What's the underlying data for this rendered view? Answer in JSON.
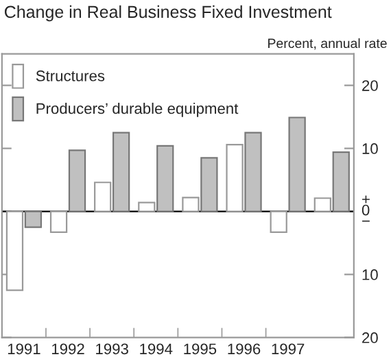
{
  "chart_data": {
    "type": "bar",
    "title": "Change in Real Business Fixed Investment",
    "ylabel": "Percent, annual rate",
    "categories": [
      "1991",
      "1992",
      "1993",
      "1994",
      "1995",
      "1996",
      "1997",
      null
    ],
    "series": [
      {
        "name": "Structures",
        "color": "#ffffff",
        "values": [
          -12.5,
          -3.3,
          4.6,
          1.4,
          2.2,
          10.6,
          -3.3,
          2.1
        ]
      },
      {
        "name": "Producers’ durable equipment",
        "color": "#c0c0c0",
        "values": [
          -2.5,
          9.7,
          12.5,
          10.4,
          8.5,
          12.5,
          14.9,
          9.4
        ]
      }
    ],
    "ylim": [
      -20,
      25
    ],
    "yticks": [
      {
        "value": -20,
        "label": "20"
      },
      {
        "value": -10,
        "label": "10"
      },
      {
        "value": 0,
        "label": "+\n0\n−"
      },
      10,
      20
    ],
    "ref_lines": [
      {
        "axis": "y",
        "value": 0,
        "color": "#000000"
      }
    ],
    "legend": "top left",
    "grid": false
  }
}
